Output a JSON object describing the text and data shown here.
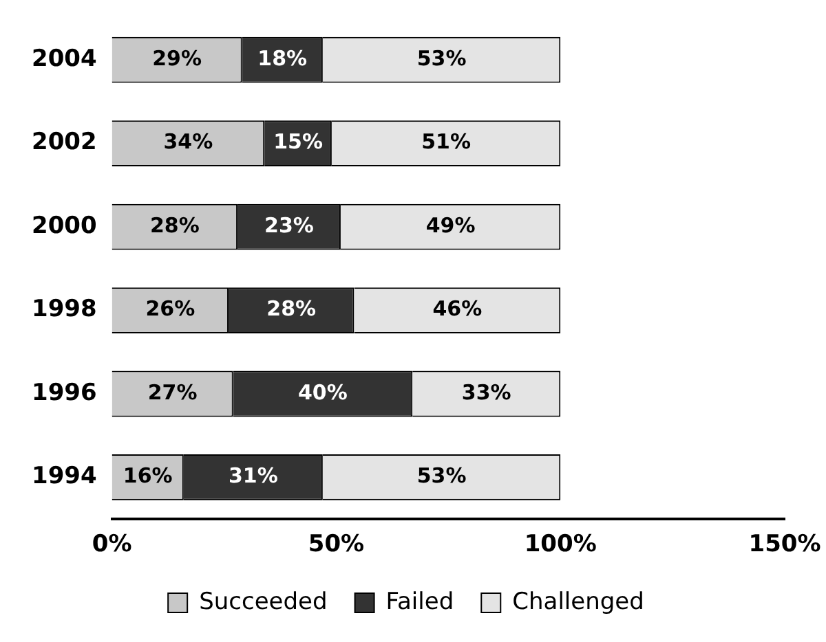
{
  "chart_data": {
    "type": "bar",
    "orientation": "horizontal",
    "stacked": true,
    "categories": [
      "2004",
      "2002",
      "2000",
      "1998",
      "1996",
      "1994"
    ],
    "series": [
      {
        "name": "Succeeded",
        "color": "#c8c8c8",
        "values": [
          29,
          34,
          28,
          26,
          27,
          16
        ],
        "value_labels": [
          "29%",
          "34%",
          "28%",
          "26%",
          "27%",
          "16%"
        ]
      },
      {
        "name": "Failed",
        "color": "#333333",
        "values": [
          18,
          15,
          23,
          28,
          40,
          31
        ],
        "value_labels": [
          "18%",
          "15%",
          "23%",
          "28%",
          "40%",
          "31%"
        ]
      },
      {
        "name": "Challenged",
        "color": "#e4e4e4",
        "values": [
          53,
          51,
          49,
          46,
          33,
          53
        ],
        "value_labels": [
          "53%",
          "51%",
          "49%",
          "46%",
          "33%",
          "53%"
        ]
      }
    ],
    "xlim": [
      0,
      150
    ],
    "xticks": [
      {
        "value": 0,
        "label": "0%"
      },
      {
        "value": 50,
        "label": "50%"
      },
      {
        "value": 100,
        "label": "100%"
      },
      {
        "value": 150,
        "label": "150%"
      }
    ],
    "grid": false,
    "legend": "bottom"
  }
}
